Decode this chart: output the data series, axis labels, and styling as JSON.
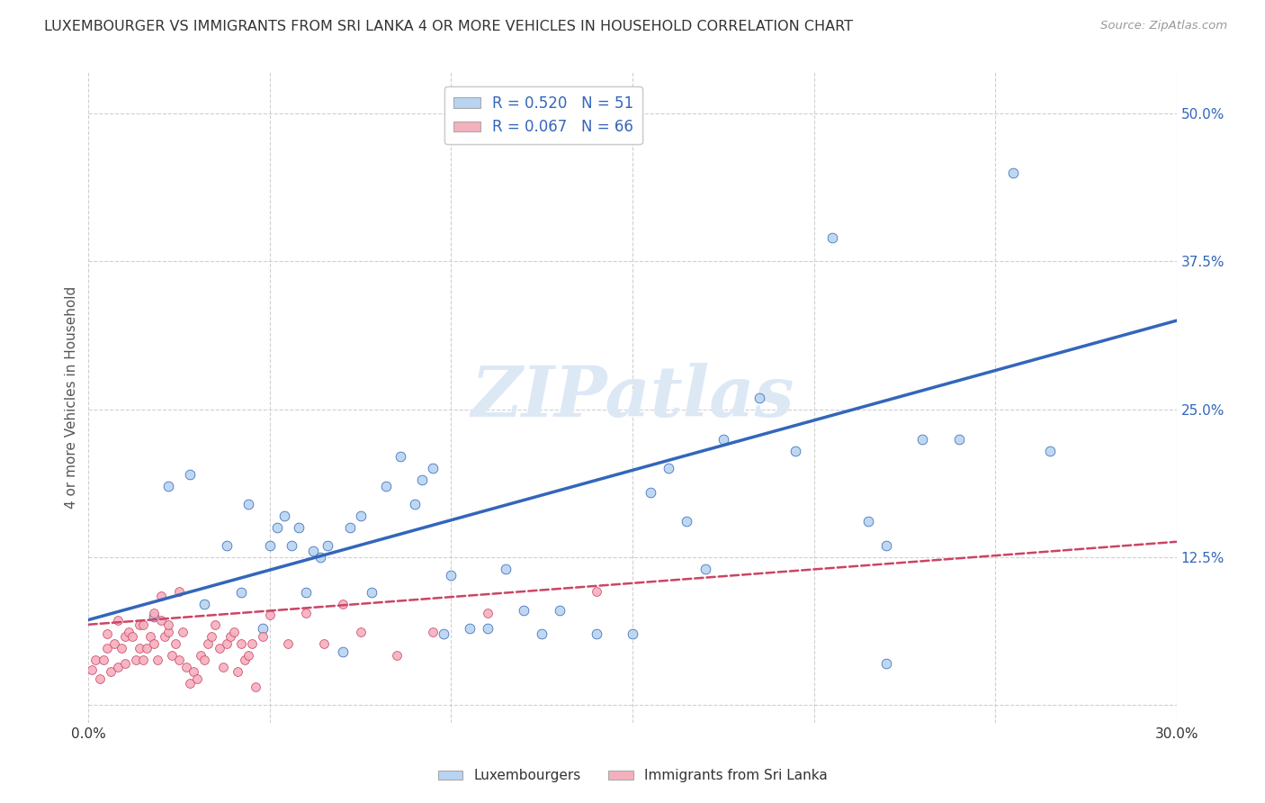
{
  "title": "LUXEMBOURGER VS IMMIGRANTS FROM SRI LANKA 4 OR MORE VEHICLES IN HOUSEHOLD CORRELATION CHART",
  "source": "Source: ZipAtlas.com",
  "ylabel": "4 or more Vehicles in Household",
  "xmin": 0.0,
  "xmax": 0.3,
  "ymin": -0.015,
  "ymax": 0.535,
  "x_ticks": [
    0.0,
    0.05,
    0.1,
    0.15,
    0.2,
    0.25,
    0.3
  ],
  "x_tick_labels": [
    "0.0%",
    "",
    "",
    "",
    "",
    "",
    "30.0%"
  ],
  "y_tick_labels_right": [
    "",
    "12.5%",
    "25.0%",
    "37.5%",
    "50.0%"
  ],
  "y_ticks_right": [
    0.0,
    0.125,
    0.25,
    0.375,
    0.5
  ],
  "legend_blue_label": "Luxembourgers",
  "legend_pink_label": "Immigrants from Sri Lanka",
  "R_blue": 0.52,
  "N_blue": 51,
  "R_pink": 0.067,
  "N_pink": 66,
  "blue_color": "#b8d4f0",
  "pink_color": "#f5b0be",
  "blue_line_color": "#3366bb",
  "pink_line_color": "#cc4466",
  "watermark": "ZIPatlas",
  "blue_line_x0": 0.0,
  "blue_line_y0": 0.072,
  "blue_line_x1": 0.3,
  "blue_line_y1": 0.325,
  "pink_line_x0": 0.0,
  "pink_line_y0": 0.068,
  "pink_line_x1": 0.3,
  "pink_line_y1": 0.138,
  "blue_points_x": [
    0.018,
    0.022,
    0.028,
    0.032,
    0.038,
    0.042,
    0.044,
    0.048,
    0.05,
    0.052,
    0.054,
    0.056,
    0.058,
    0.06,
    0.062,
    0.064,
    0.066,
    0.07,
    0.072,
    0.075,
    0.078,
    0.082,
    0.086,
    0.09,
    0.092,
    0.095,
    0.098,
    0.1,
    0.105,
    0.11,
    0.115,
    0.12,
    0.125,
    0.13,
    0.14,
    0.15,
    0.155,
    0.16,
    0.165,
    0.17,
    0.175,
    0.185,
    0.195,
    0.205,
    0.215,
    0.22,
    0.23,
    0.24,
    0.255,
    0.265,
    0.22
  ],
  "blue_points_y": [
    0.075,
    0.185,
    0.195,
    0.085,
    0.135,
    0.095,
    0.17,
    0.065,
    0.135,
    0.15,
    0.16,
    0.135,
    0.15,
    0.095,
    0.13,
    0.125,
    0.135,
    0.045,
    0.15,
    0.16,
    0.095,
    0.185,
    0.21,
    0.17,
    0.19,
    0.2,
    0.06,
    0.11,
    0.065,
    0.065,
    0.115,
    0.08,
    0.06,
    0.08,
    0.06,
    0.06,
    0.18,
    0.2,
    0.155,
    0.115,
    0.225,
    0.26,
    0.215,
    0.395,
    0.155,
    0.135,
    0.225,
    0.225,
    0.45,
    0.215,
    0.035
  ],
  "pink_points_x": [
    0.001,
    0.002,
    0.003,
    0.004,
    0.005,
    0.005,
    0.006,
    0.007,
    0.008,
    0.008,
    0.009,
    0.01,
    0.01,
    0.011,
    0.012,
    0.013,
    0.014,
    0.014,
    0.015,
    0.015,
    0.016,
    0.017,
    0.018,
    0.018,
    0.019,
    0.02,
    0.02,
    0.021,
    0.022,
    0.022,
    0.023,
    0.024,
    0.025,
    0.025,
    0.026,
    0.027,
    0.028,
    0.029,
    0.03,
    0.031,
    0.032,
    0.033,
    0.034,
    0.035,
    0.036,
    0.037,
    0.038,
    0.039,
    0.04,
    0.041,
    0.042,
    0.043,
    0.044,
    0.045,
    0.046,
    0.048,
    0.05,
    0.055,
    0.06,
    0.065,
    0.07,
    0.075,
    0.085,
    0.095,
    0.11,
    0.14
  ],
  "pink_points_y": [
    0.03,
    0.038,
    0.022,
    0.038,
    0.048,
    0.06,
    0.028,
    0.052,
    0.032,
    0.072,
    0.048,
    0.058,
    0.035,
    0.062,
    0.058,
    0.038,
    0.068,
    0.048,
    0.038,
    0.068,
    0.048,
    0.058,
    0.052,
    0.078,
    0.038,
    0.072,
    0.092,
    0.058,
    0.062,
    0.068,
    0.042,
    0.052,
    0.038,
    0.096,
    0.062,
    0.032,
    0.018,
    0.028,
    0.022,
    0.042,
    0.038,
    0.052,
    0.058,
    0.068,
    0.048,
    0.032,
    0.052,
    0.058,
    0.062,
    0.028,
    0.052,
    0.038,
    0.042,
    0.052,
    0.015,
    0.058,
    0.076,
    0.052,
    0.078,
    0.052,
    0.085,
    0.062,
    0.042,
    0.062,
    0.078,
    0.096
  ]
}
